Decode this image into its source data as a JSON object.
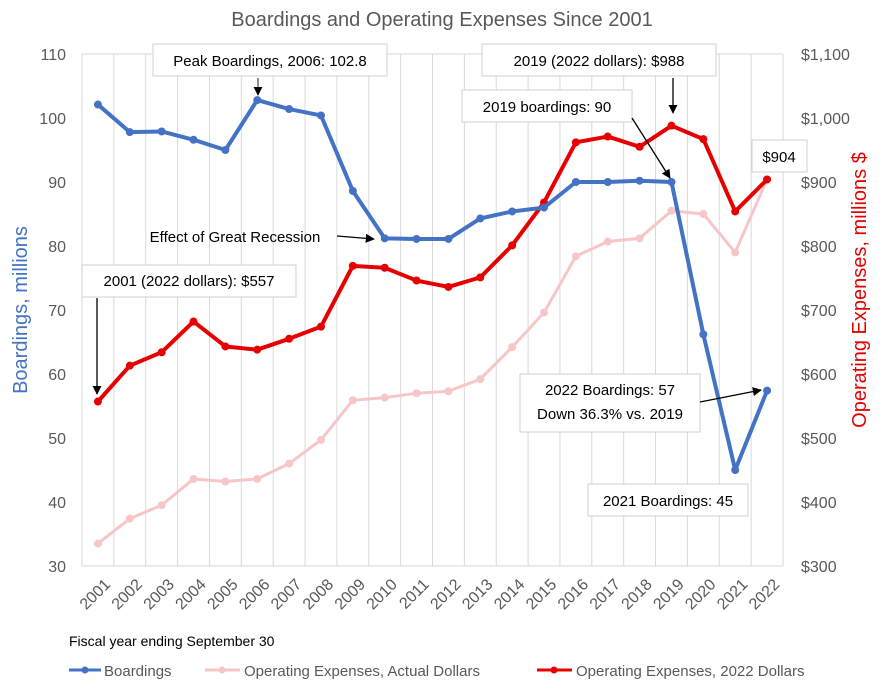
{
  "chart_data": {
    "type": "line",
    "title": "Boardings and Operating Expenses Since 2001",
    "xlabel": "Fiscal year ending September 30",
    "ylabel_left": "Boardings, millions",
    "ylabel_right": "Operating Expenses, millions $",
    "categories": [
      "2001",
      "2002",
      "2003",
      "2004",
      "2005",
      "2006",
      "2007",
      "2008",
      "2009",
      "2010",
      "2011",
      "2012",
      "2013",
      "2014",
      "2015",
      "2016",
      "2017",
      "2018",
      "2019",
      "2020",
      "2021",
      "2022"
    ],
    "y_left": {
      "min": 30,
      "max": 110,
      "step": 10,
      "ticks": [
        "30",
        "40",
        "50",
        "60",
        "70",
        "80",
        "90",
        "100",
        "110"
      ]
    },
    "y_right": {
      "min": 300,
      "max": 1100,
      "step": 100,
      "ticks": [
        "$300",
        "$400",
        "$500",
        "$600",
        "$700",
        "$800",
        "$900",
        "$1,000",
        "$1,100"
      ]
    },
    "grid": "vertical",
    "legend_position": "bottom",
    "series": [
      {
        "name": "Boardings",
        "axis": "left",
        "color": "#4472C4",
        "values": [
          102.1,
          97.8,
          97.9,
          96.6,
          95.0,
          102.8,
          101.4,
          100.4,
          88.6,
          81.2,
          81.1,
          81.1,
          84.3,
          85.4,
          86.0,
          90.0,
          90.0,
          90.2,
          90.0,
          66.2,
          45.0,
          57.4
        ]
      },
      {
        "name": "Operating Expenses, Actual Dollars",
        "axis": "right",
        "color": "#F8C6C6",
        "values": [
          335,
          374,
          395,
          436,
          432,
          436,
          460,
          497,
          559,
          563,
          570,
          573,
          592,
          642,
          696,
          784,
          807,
          812,
          855,
          850,
          790,
          904
        ]
      },
      {
        "name": "Operating Expenses, 2022 Dollars",
        "axis": "right",
        "color": "#E60000",
        "values": [
          557,
          613,
          634,
          682,
          643,
          638,
          655,
          674,
          769,
          766,
          746,
          736,
          751,
          801,
          868,
          962,
          971,
          955,
          988,
          967,
          854,
          904
        ]
      }
    ],
    "annotations": [
      {
        "text": "Peak Boardings, 2006: 102.8"
      },
      {
        "text": "2019 (2022 dollars): $988"
      },
      {
        "text": "2019 boardings: 90"
      },
      {
        "text": "$904"
      },
      {
        "text": "Effect of Great Recession"
      },
      {
        "text": "2001 (2022 dollars): $557"
      },
      {
        "text": "2022 Boardings: 57"
      },
      {
        "text": "Down 36.3% vs. 2019"
      },
      {
        "text": "2021 Boardings: 45"
      }
    ]
  }
}
